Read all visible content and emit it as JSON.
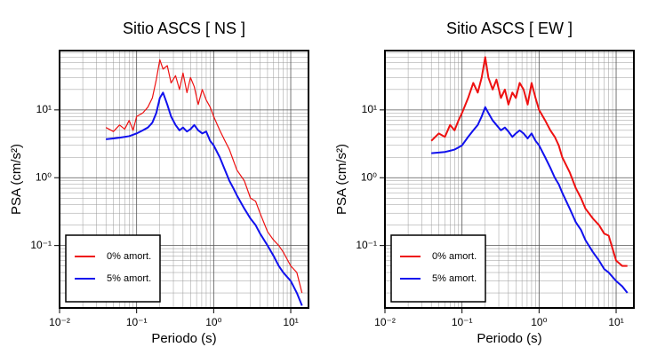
{
  "chart_data": [
    {
      "type": "line",
      "title": "Sitio ASCS [ NS ]",
      "xlabel": "Periodo (s)",
      "ylabel": "PSA (cm/s²)",
      "xscale": "log",
      "yscale": "log",
      "grid": true,
      "legend": "lower left",
      "xlim": [
        0.01,
        17
      ],
      "ylim": [
        0.012,
        75
      ],
      "xticks": [
        {
          "value": 0.01,
          "label": "10⁻²"
        },
        {
          "value": 0.1,
          "label": "10⁻¹"
        },
        {
          "value": 1,
          "label": "10⁰"
        },
        {
          "value": 10,
          "label": "10¹"
        }
      ],
      "yticks": [
        {
          "value": 0.1,
          "label": "10⁻¹"
        },
        {
          "value": 1,
          "label": "10⁰"
        },
        {
          "value": 10,
          "label": "10¹"
        }
      ],
      "x": [
        0.04,
        0.05,
        0.06,
        0.07,
        0.08,
        0.09,
        0.1,
        0.12,
        0.14,
        0.16,
        0.18,
        0.2,
        0.22,
        0.25,
        0.28,
        0.32,
        0.36,
        0.4,
        0.45,
        0.5,
        0.56,
        0.63,
        0.71,
        0.8,
        0.9,
        1.0,
        1.2,
        1.4,
        1.6,
        1.8,
        2.0,
        2.5,
        3.0,
        3.5,
        4.0,
        5.0,
        6.0,
        7.0,
        8.0,
        10,
        12,
        14
      ],
      "series": [
        {
          "name": "0% amort.",
          "color": "#ee1111",
          "width": 1.2,
          "values": [
            5.5,
            4.8,
            6,
            5.2,
            7,
            5,
            8,
            9,
            11,
            15,
            28,
            55,
            40,
            45,
            25,
            32,
            20,
            35,
            18,
            30,
            22,
            12,
            20,
            14,
            11,
            8,
            5,
            3.5,
            2.6,
            1.8,
            1.3,
            0.9,
            0.5,
            0.45,
            0.3,
            0.16,
            0.12,
            0.1,
            0.08,
            0.05,
            0.04,
            0.02
          ]
        },
        {
          "name": "5% amort.",
          "color": "#1111ee",
          "width": 2,
          "values": [
            3.7,
            3.8,
            3.9,
            4.0,
            4.1,
            4.3,
            4.5,
            5,
            5.5,
            6.5,
            9,
            15,
            18,
            12,
            8,
            6,
            5,
            5.5,
            4.8,
            5.2,
            6,
            5,
            4.5,
            4.8,
            3.5,
            3,
            2,
            1.3,
            0.9,
            0.7,
            0.55,
            0.35,
            0.25,
            0.2,
            0.15,
            0.1,
            0.07,
            0.05,
            0.04,
            0.03,
            0.02,
            0.013
          ]
        }
      ]
    },
    {
      "type": "line",
      "title": "Sitio ASCS [ EW ]",
      "xlabel": "Periodo (s)",
      "ylabel": "PSA (cm/s²)",
      "xscale": "log",
      "yscale": "log",
      "grid": true,
      "legend": "lower left",
      "xlim": [
        0.01,
        17
      ],
      "ylim": [
        0.012,
        75
      ],
      "xticks": [
        {
          "value": 0.01,
          "label": "10⁻²"
        },
        {
          "value": 0.1,
          "label": "10⁻¹"
        },
        {
          "value": 1,
          "label": "10⁰"
        },
        {
          "value": 10,
          "label": "10¹"
        }
      ],
      "yticks": [
        {
          "value": 0.1,
          "label": "10⁻¹"
        },
        {
          "value": 1,
          "label": "10⁰"
        },
        {
          "value": 10,
          "label": "10¹"
        }
      ],
      "x": [
        0.04,
        0.05,
        0.06,
        0.07,
        0.08,
        0.09,
        0.1,
        0.12,
        0.14,
        0.16,
        0.18,
        0.2,
        0.22,
        0.25,
        0.28,
        0.32,
        0.36,
        0.4,
        0.45,
        0.5,
        0.56,
        0.63,
        0.71,
        0.8,
        0.9,
        1.0,
        1.2,
        1.4,
        1.6,
        1.8,
        2.0,
        2.5,
        3.0,
        3.5,
        4.0,
        5.0,
        6.0,
        7.0,
        8.0,
        10,
        12,
        14
      ],
      "series": [
        {
          "name": "0% amort.",
          "color": "#ee1111",
          "width": 2,
          "values": [
            3.5,
            4.5,
            4,
            6,
            5,
            7,
            9,
            15,
            25,
            18,
            30,
            60,
            30,
            20,
            28,
            15,
            20,
            12,
            18,
            15,
            25,
            20,
            12,
            25,
            15,
            10,
            7,
            5,
            4,
            3,
            2,
            1.2,
            0.7,
            0.5,
            0.35,
            0.25,
            0.2,
            0.15,
            0.14,
            0.06,
            0.05,
            0.05
          ]
        },
        {
          "name": "5% amort.",
          "color": "#1111ee",
          "width": 2,
          "values": [
            2.3,
            2.35,
            2.4,
            2.5,
            2.6,
            2.8,
            3,
            4,
            5,
            6,
            8,
            11,
            9,
            7,
            6,
            5,
            5.5,
            4.8,
            4,
            4.5,
            5,
            4.5,
            3.8,
            4.5,
            3.5,
            3,
            2,
            1.4,
            1,
            0.8,
            0.6,
            0.35,
            0.22,
            0.17,
            0.12,
            0.08,
            0.06,
            0.045,
            0.04,
            0.03,
            0.025,
            0.02
          ]
        }
      ]
    }
  ]
}
